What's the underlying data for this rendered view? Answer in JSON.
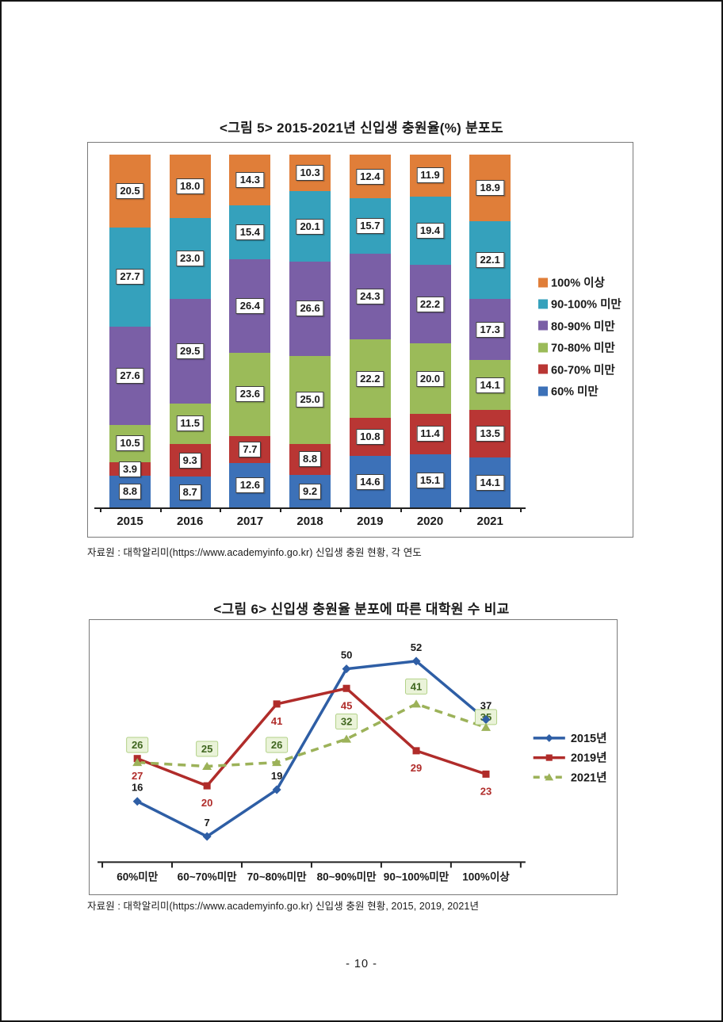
{
  "page": {
    "number": "- 10 -"
  },
  "chart_data": [
    {
      "type": "bar",
      "stacked": true,
      "percent_stacked": true,
      "title": "<그림 5> 2015-2021년 신입생 충원율(%) 분포도",
      "source": "자료원 : 대학알리미(https://www.academyinfo.go.kr) 신입생 충원 현황, 각 연도",
      "categories": [
        "2015",
        "2016",
        "2017",
        "2018",
        "2019",
        "2020",
        "2021"
      ],
      "series": [
        {
          "name": "60% 미만",
          "color": "#3C71B8",
          "values": [
            8.8,
            8.7,
            12.6,
            9.2,
            14.6,
            15.1,
            14.1
          ]
        },
        {
          "name": "60-70% 미만",
          "color": "#B93634",
          "values": [
            3.9,
            9.3,
            7.7,
            8.8,
            10.8,
            11.4,
            13.5
          ]
        },
        {
          "name": "70-80% 미만",
          "color": "#9BBB59",
          "values": [
            10.5,
            11.5,
            23.6,
            25.0,
            22.2,
            20.0,
            14.1
          ]
        },
        {
          "name": "80-90% 미만",
          "color": "#7A5FA6",
          "values": [
            27.6,
            29.5,
            26.4,
            26.6,
            24.3,
            22.2,
            17.3
          ]
        },
        {
          "name": "90-100% 미만",
          "color": "#35A1BC",
          "values": [
            27.7,
            23.0,
            15.4,
            20.1,
            15.7,
            19.4,
            22.1
          ]
        },
        {
          "name": "100% 이상",
          "color": "#E07E39",
          "values": [
            20.5,
            18.0,
            14.3,
            10.3,
            12.4,
            11.9,
            18.9
          ]
        }
      ],
      "legend_position": "right-inside",
      "legend_order_top_to_bottom": [
        "100% 이상",
        "90-100% 미만",
        "80-90% 미만",
        "70-80% 미만",
        "60-70% 미만",
        "60% 미만"
      ],
      "grid": false,
      "value_labels": "boxed, one decimal"
    },
    {
      "type": "line",
      "title": "<그림 6> 신입생 충원율 분포에 따른 대학원 수 비교",
      "source": "자료원 : 대학알리미(https://www.academyinfo.go.kr) 신입생 충원 현황, 2015, 2019, 2021년",
      "categories": [
        "60%미만",
        "60~70%미만",
        "70~80%미만",
        "80~90%미만",
        "90~100%미만",
        "100%이상"
      ],
      "series": [
        {
          "name": "2015년",
          "color": "#2E5EA5",
          "marker": "diamond",
          "line_style": "solid",
          "label_style": "plain-black",
          "values": [
            16,
            7,
            19,
            50,
            52,
            37
          ]
        },
        {
          "name": "2019년",
          "color": "#B02C2A",
          "marker": "square",
          "line_style": "solid",
          "label_style": "plain-red",
          "values": [
            27,
            20,
            41,
            45,
            29,
            23
          ]
        },
        {
          "name": "2021년",
          "color": "#9CB259",
          "marker": "triangle",
          "line_style": "dashed",
          "label_style": "boxed-green",
          "values": [
            26,
            25,
            26,
            32,
            41,
            35
          ]
        }
      ],
      "label_box_colors": {
        "bg": "#EAF3D9",
        "border": "#B3D289",
        "text": "#3F661F"
      },
      "ylim": [
        0,
        60
      ],
      "grid": false,
      "legend_position": "right-inside"
    }
  ]
}
